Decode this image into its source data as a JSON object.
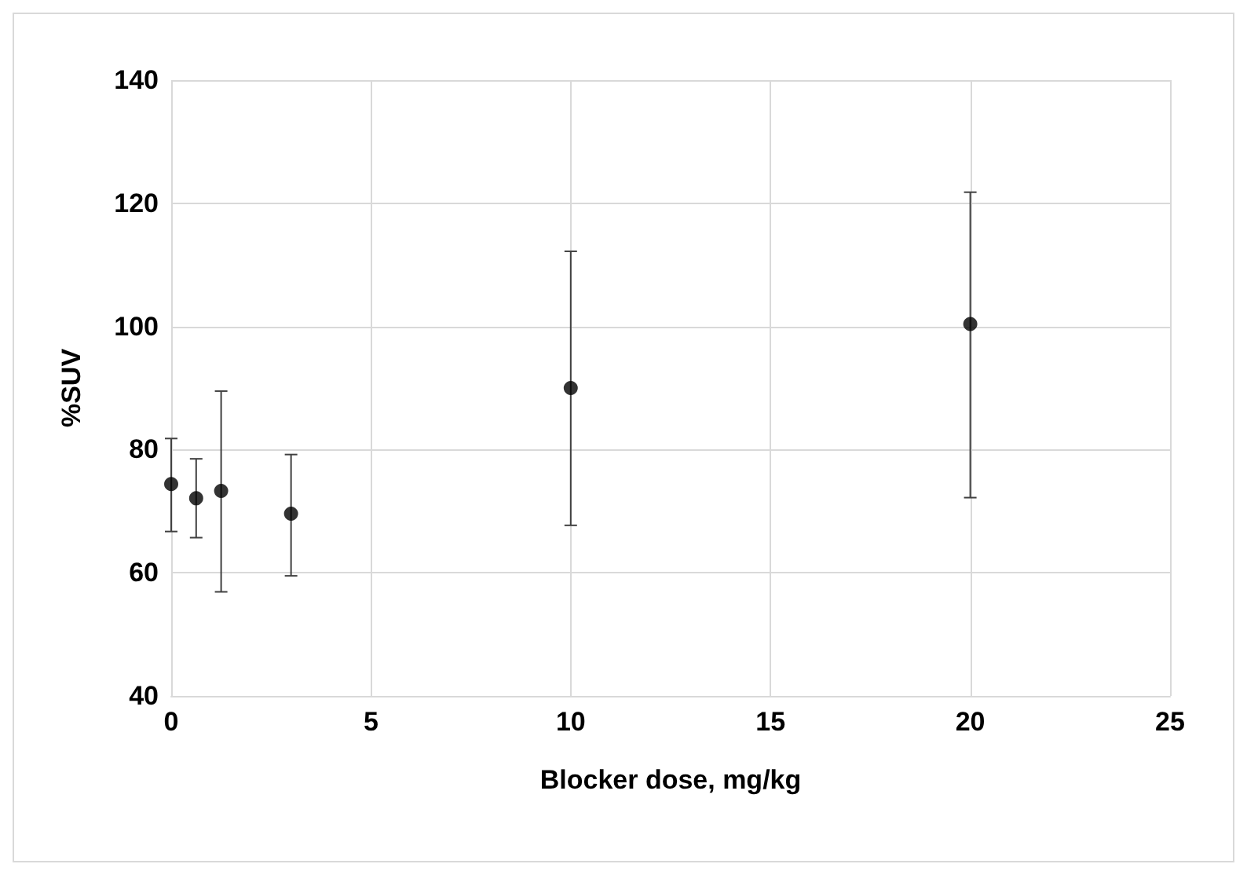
{
  "chart_data": {
    "type": "scatter",
    "xlabel": "Blocker dose, mg/kg",
    "ylabel": "%SUV",
    "x": [
      0,
      0.625,
      1.25,
      3,
      10,
      20
    ],
    "values": [
      74.4,
      72.1,
      73.3,
      69.6,
      90.0,
      100.4
    ],
    "errors": [
      [
        66.7,
        81.8
      ],
      [
        65.7,
        78.5
      ],
      [
        56.9,
        89.5
      ],
      [
        59.5,
        79.2
      ],
      [
        67.7,
        112.2
      ],
      [
        72.2,
        121.8
      ]
    ],
    "color": "#000000",
    "marker": "circle",
    "xlim": [
      0,
      25
    ],
    "xticks": [
      0,
      5,
      10,
      15,
      20,
      25
    ],
    "ylim": [
      40,
      140
    ],
    "yticks": [
      40,
      60,
      80,
      100,
      120,
      140
    ],
    "grid": true
  }
}
